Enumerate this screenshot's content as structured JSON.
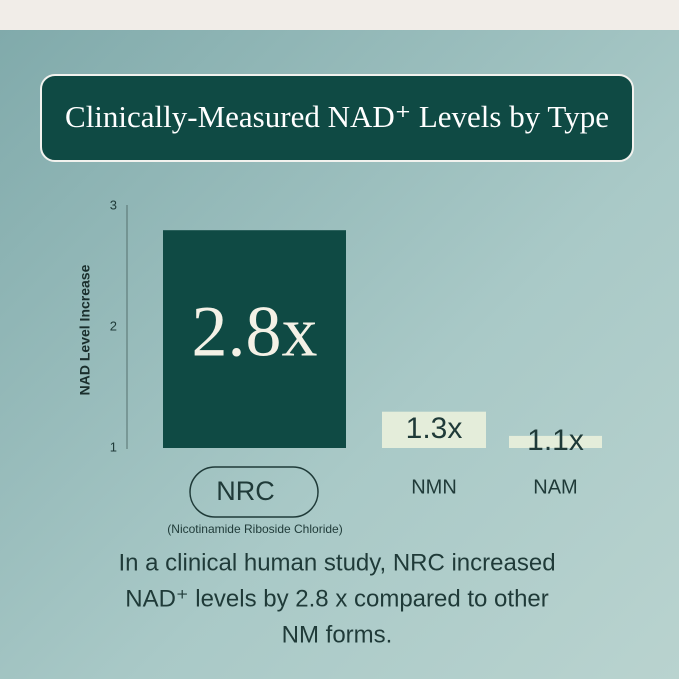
{
  "chart_data": {
    "type": "bar",
    "title": "Clinically-Measured NAD⁺ Levels by Type",
    "y_label": "NAD Level Increase",
    "categories": [
      "NRC",
      "NMN",
      "NAM"
    ],
    "category_note": "(Nicotinamide Riboside Chloride)",
    "values": [
      2.8,
      1.3,
      1.1
    ],
    "value_labels": [
      "2.8x",
      "1.3x",
      "1.1x"
    ],
    "colors": [
      "#0f4a44",
      "#e4edda",
      "#e4edda"
    ],
    "ylim": [
      1,
      3
    ],
    "yticks": [
      1,
      2,
      3
    ],
    "grid": false,
    "caption_lines": [
      "In a clinical human study, NRC increased",
      "NAD⁺ levels by 2.8 x compared to other",
      "NM forms."
    ]
  }
}
